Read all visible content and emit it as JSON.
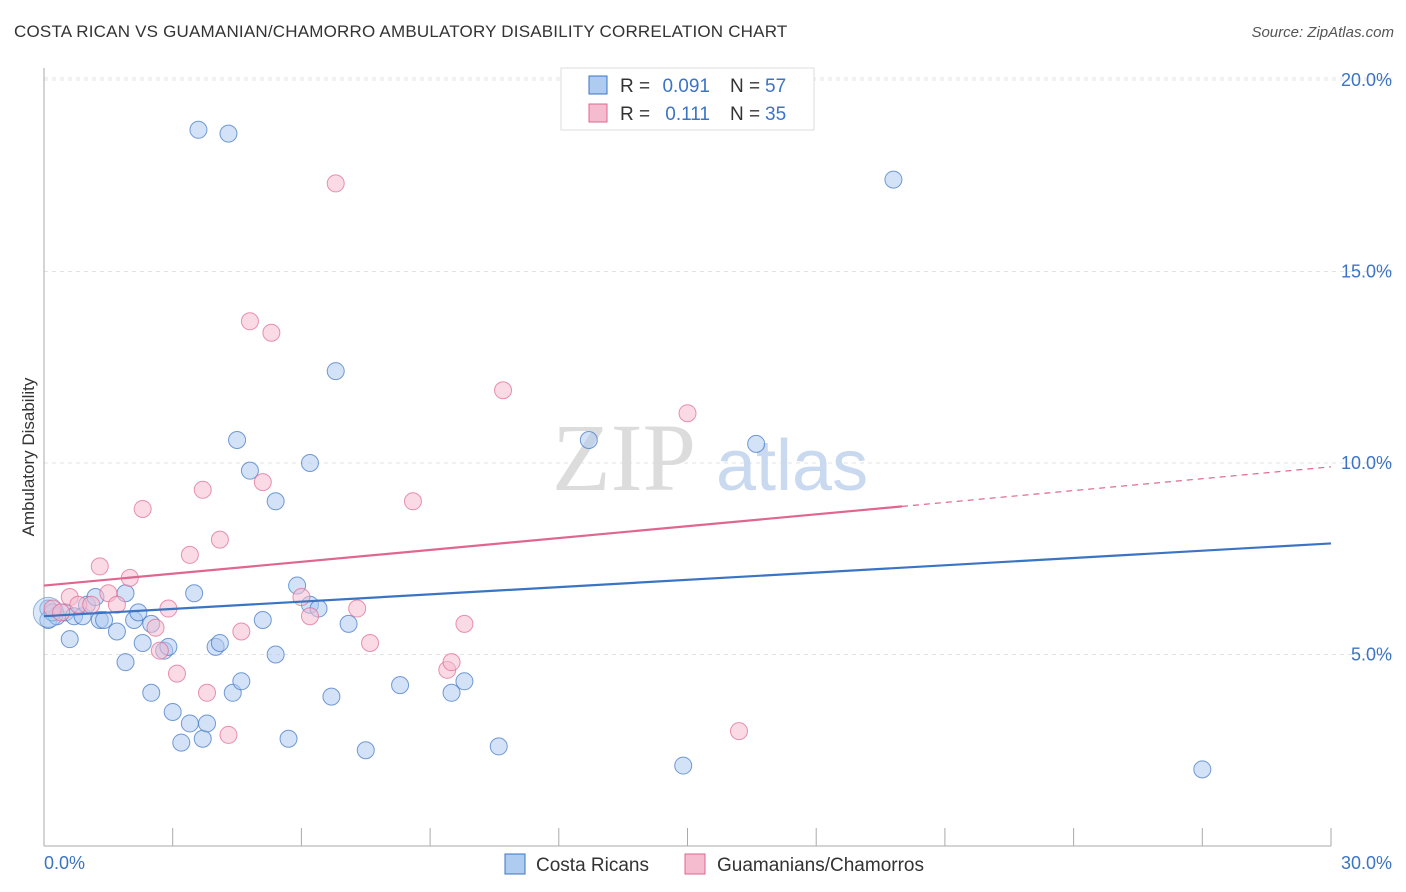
{
  "header": {
    "title": "COSTA RICAN VS GUAMANIAN/CHAMORRO AMBULATORY DISABILITY CORRELATION CHART",
    "source": "Source: ZipAtlas.com"
  },
  "watermark": {
    "zip": "ZIP",
    "atlas": "atlas"
  },
  "colors": {
    "blue": "#3b74c4",
    "blue_fill": "#aecbf0",
    "pink": "#e06690",
    "pink_fill": "#f5bcd0",
    "grid": "#e3e3e3"
  },
  "chart_data": {
    "type": "scatter",
    "title": "COSTA RICAN VS GUAMANIAN/CHAMORRO AMBULATORY DISABILITY CORRELATION CHART",
    "xlabel": "",
    "ylabel": "Ambulatory Disability",
    "xlim": [
      0,
      30
    ],
    "ylim": [
      0,
      20
    ],
    "x_tick_labels": [
      "0.0%",
      "30.0%"
    ],
    "y_ticks": [
      5,
      10,
      15,
      20
    ],
    "y_tick_labels": [
      "5.0%",
      "10.0%",
      "15.0%",
      "20.0%"
    ],
    "legend": [
      {
        "r_label": "R =",
        "r_value": "0.091",
        "n_label": "N =",
        "n_value": "57"
      },
      {
        "r_label": "R =",
        "r_value": "0.111",
        "n_label": "N =",
        "n_value": "35"
      }
    ],
    "series": [
      {
        "name": "Costa Ricans",
        "color": "#3b74c4",
        "trend": {
          "x": [
            0,
            30
          ],
          "y": [
            6.0,
            7.9
          ],
          "solid_until": 30
        },
        "points": [
          [
            0.1,
            6.2
          ],
          [
            0.1,
            5.9
          ],
          [
            0.3,
            6.0
          ],
          [
            0.5,
            6.1
          ],
          [
            0.6,
            5.4
          ],
          [
            0.7,
            6.0
          ],
          [
            0.9,
            6.0
          ],
          [
            1.0,
            6.3
          ],
          [
            1.3,
            5.9
          ],
          [
            1.4,
            5.9
          ],
          [
            1.7,
            5.6
          ],
          [
            1.9,
            6.6
          ],
          [
            1.9,
            4.8
          ],
          [
            2.1,
            5.9
          ],
          [
            2.2,
            6.1
          ],
          [
            2.3,
            5.3
          ],
          [
            2.5,
            5.8
          ],
          [
            2.5,
            4.0
          ],
          [
            2.8,
            5.1
          ],
          [
            2.9,
            5.2
          ],
          [
            3.0,
            3.5
          ],
          [
            3.2,
            2.7
          ],
          [
            3.4,
            3.2
          ],
          [
            3.5,
            6.6
          ],
          [
            3.6,
            18.7
          ],
          [
            3.7,
            2.8
          ],
          [
            3.8,
            3.2
          ],
          [
            4.0,
            5.2
          ],
          [
            4.1,
            5.3
          ],
          [
            4.3,
            18.6
          ],
          [
            4.4,
            4.0
          ],
          [
            4.5,
            10.6
          ],
          [
            4.6,
            4.3
          ],
          [
            4.8,
            9.8
          ],
          [
            5.1,
            5.9
          ],
          [
            5.4,
            5.0
          ],
          [
            5.4,
            9.0
          ],
          [
            5.7,
            2.8
          ],
          [
            5.9,
            6.8
          ],
          [
            6.2,
            10.0
          ],
          [
            6.2,
            6.3
          ],
          [
            6.4,
            6.2
          ],
          [
            6.7,
            3.9
          ],
          [
            6.8,
            12.4
          ],
          [
            7.1,
            5.8
          ],
          [
            7.5,
            2.5
          ],
          [
            8.3,
            4.2
          ],
          [
            9.5,
            4.0
          ],
          [
            9.8,
            4.3
          ],
          [
            10.6,
            2.6
          ],
          [
            12.7,
            10.6
          ],
          [
            14.9,
            2.1
          ],
          [
            16.6,
            10.5
          ],
          [
            19.8,
            17.4
          ],
          [
            27.0,
            2.0
          ],
          [
            0.2,
            6.1
          ],
          [
            1.2,
            6.5
          ]
        ]
      },
      {
        "name": "Guamanians/Chamorros",
        "color": "#e06690",
        "trend": {
          "x": [
            0,
            30
          ],
          "y": [
            6.8,
            9.9
          ],
          "solid_until": 20
        },
        "points": [
          [
            0.2,
            6.2
          ],
          [
            0.4,
            6.1
          ],
          [
            0.6,
            6.5
          ],
          [
            0.8,
            6.3
          ],
          [
            1.1,
            6.3
          ],
          [
            1.3,
            7.3
          ],
          [
            1.5,
            6.6
          ],
          [
            1.7,
            6.3
          ],
          [
            2.0,
            7.0
          ],
          [
            2.3,
            8.8
          ],
          [
            2.6,
            5.7
          ],
          [
            2.7,
            5.1
          ],
          [
            2.9,
            6.2
          ],
          [
            3.1,
            4.5
          ],
          [
            3.4,
            7.6
          ],
          [
            3.7,
            9.3
          ],
          [
            3.8,
            4.0
          ],
          [
            4.1,
            8.0
          ],
          [
            4.3,
            2.9
          ],
          [
            4.6,
            5.6
          ],
          [
            4.8,
            13.7
          ],
          [
            5.1,
            9.5
          ],
          [
            5.3,
            13.4
          ],
          [
            6.0,
            6.5
          ],
          [
            6.2,
            6.0
          ],
          [
            6.8,
            17.3
          ],
          [
            7.3,
            6.2
          ],
          [
            7.6,
            5.3
          ],
          [
            8.6,
            9.0
          ],
          [
            9.4,
            4.6
          ],
          [
            9.5,
            4.8
          ],
          [
            9.8,
            5.8
          ],
          [
            10.7,
            11.9
          ],
          [
            15.0,
            11.3
          ],
          [
            16.2,
            3.0
          ]
        ]
      }
    ]
  }
}
